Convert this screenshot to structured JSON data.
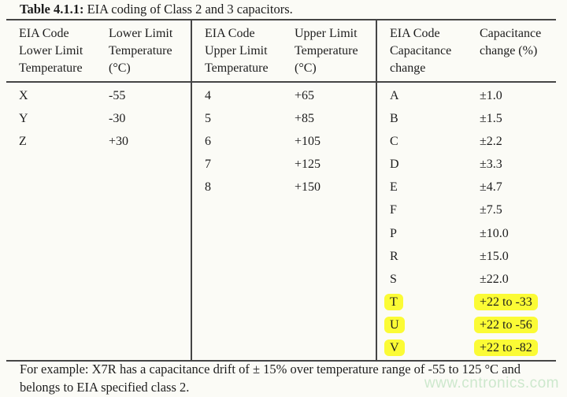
{
  "caption": {
    "label": "Table 4.1.1:",
    "text": " EIA coding of Class 2 and 3 capacitors."
  },
  "table": {
    "groups": [
      {
        "header_code": "EIA Code\nLower Limit\nTemperature",
        "header_value": "Lower Limit\nTemperature\n(°C)",
        "rows": [
          {
            "code": "X",
            "value": "-55"
          },
          {
            "code": "Y",
            "value": "-30"
          },
          {
            "code": "Z",
            "value": "+30"
          }
        ]
      },
      {
        "header_code": "EIA Code\nUpper Limit\nTemperature",
        "header_value": "Upper Limit\nTemperature\n(°C)",
        "rows": [
          {
            "code": "4",
            "value": "+65"
          },
          {
            "code": "5",
            "value": "+85"
          },
          {
            "code": "6",
            "value": "+105"
          },
          {
            "code": "7",
            "value": "+125"
          },
          {
            "code": "8",
            "value": "+150"
          }
        ]
      },
      {
        "header_code": "EIA Code\nCapacitance\nchange",
        "header_value": "Capacitance\nchange (%)",
        "rows": [
          {
            "code": "A",
            "value": "±1.0",
            "highlighted": false
          },
          {
            "code": "B",
            "value": "±1.5",
            "highlighted": false
          },
          {
            "code": "C",
            "value": "±2.2",
            "highlighted": false
          },
          {
            "code": "D",
            "value": "±3.3",
            "highlighted": false
          },
          {
            "code": "E",
            "value": "±4.7",
            "highlighted": false
          },
          {
            "code": "F",
            "value": "±7.5",
            "highlighted": false
          },
          {
            "code": "P",
            "value": "±10.0",
            "highlighted": false
          },
          {
            "code": "R",
            "value": "±15.0",
            "highlighted": false
          },
          {
            "code": "S",
            "value": "±22.0",
            "highlighted": false
          },
          {
            "code": "T",
            "value": "+22 to -33",
            "highlighted": true
          },
          {
            "code": "U",
            "value": "+22 to -56",
            "highlighted": true
          },
          {
            "code": "V",
            "value": "+22 to -82",
            "highlighted": true
          }
        ]
      }
    ]
  },
  "footer": {
    "note": "For example: X7R has a capacitance drift of ± 15% over temperature range of -55 to 125 °C and belongs to EIA specified class 2."
  },
  "watermark": {
    "text": "www.cntronics.com"
  },
  "colors": {
    "highlight": "#fbfb35",
    "border": "#454545",
    "text": "#1d1d1d",
    "background": "#fbfbf6",
    "watermark": "#cde8cd"
  }
}
